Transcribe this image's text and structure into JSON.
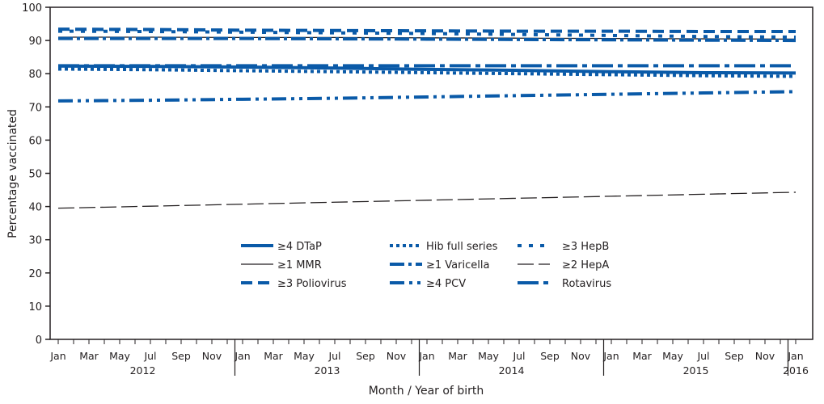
{
  "chart_data": {
    "type": "line",
    "title": "",
    "xlabel": "Month / Year of birth",
    "ylabel": "Percentage vaccinated",
    "ylim": [
      0,
      100
    ],
    "yticks": [
      0,
      10,
      20,
      30,
      40,
      50,
      60,
      70,
      80,
      90,
      100
    ],
    "x": [
      "2012-01",
      "2012-07",
      "2013-01",
      "2013-07",
      "2014-01",
      "2014-07",
      "2015-01",
      "2015-07",
      "2016-01"
    ],
    "xtick_months": [
      "Jan",
      "Mar",
      "May",
      "Jul",
      "Sep",
      "Nov"
    ],
    "years": [
      "2012",
      "2013",
      "2014",
      "2015"
    ],
    "final_tick": {
      "month": "Jan",
      "year": "2016"
    },
    "grid": false,
    "legend_placement": "bottom-center",
    "colors": {
      "blue": "#0a5aa8",
      "black": "#231f20"
    },
    "series": [
      {
        "name": "≥4 DTaP",
        "style": "solid-thick",
        "color": "#0a5aa8",
        "values": [
          82.3,
          82.2,
          82.0,
          81.7,
          81.3,
          81.0,
          80.6,
          80.3,
          80.2
        ]
      },
      {
        "name": "≥1 MMR",
        "style": "solid-thin",
        "color": "#231f20",
        "values": [
          91.0,
          91.0,
          90.9,
          90.9,
          90.8,
          90.7,
          90.6,
          90.5,
          90.4
        ]
      },
      {
        "name": "≥3 Poliovirus",
        "style": "dashed",
        "color": "#0a5aa8",
        "values": [
          93.4,
          93.3,
          93.1,
          93.0,
          92.9,
          92.8,
          92.8,
          92.7,
          92.7
        ]
      },
      {
        "name": "Hib full series",
        "style": "dotted",
        "color": "#0a5aa8",
        "values": [
          81.4,
          81.2,
          80.9,
          80.6,
          80.3,
          80.0,
          79.7,
          79.4,
          79.2
        ]
      },
      {
        "name": "≥1 Varicella",
        "style": "dash-dot",
        "color": "#0a5aa8",
        "values": [
          90.6,
          90.6,
          90.6,
          90.5,
          90.4,
          90.3,
          90.2,
          90.1,
          90.0
        ]
      },
      {
        "name": "≥4 PCV",
        "style": "dash-dot-dot",
        "color": "#0a5aa8",
        "values": [
          71.8,
          72.0,
          72.3,
          72.6,
          73.0,
          73.4,
          73.8,
          74.2,
          74.6
        ]
      },
      {
        "name": "≥3 HepB",
        "style": "sparse-dotted",
        "color": "#0a5aa8",
        "values": [
          92.8,
          92.7,
          92.5,
          92.3,
          92.1,
          91.8,
          91.5,
          91.2,
          91.0
        ]
      },
      {
        "name": "≥2 HepA",
        "style": "long-dash-thin",
        "color": "#231f20",
        "values": [
          39.5,
          40.1,
          40.7,
          41.3,
          41.9,
          42.5,
          43.1,
          43.7,
          44.3
        ]
      },
      {
        "name": "Rotavirus",
        "style": "long-dash-dot",
        "color": "#0a5aa8",
        "values": [
          82.4,
          82.4,
          82.4,
          82.4,
          82.4,
          82.4,
          82.4,
          82.4,
          82.4
        ]
      }
    ]
  }
}
